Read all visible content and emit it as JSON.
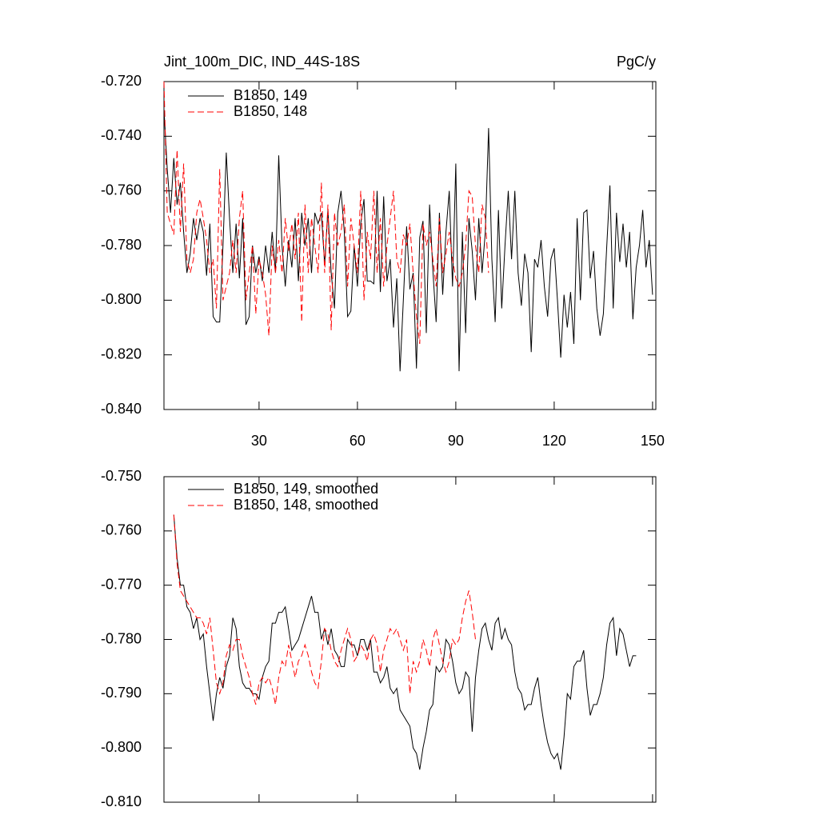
{
  "chart_data": [
    {
      "type": "line",
      "title": "Jint_100m_DIC, IND_44S-18S",
      "units": "PgC/y",
      "x": [
        1,
        2,
        3,
        4,
        5,
        6,
        7,
        8,
        9,
        10,
        11,
        12,
        13,
        14,
        15,
        16,
        17,
        18,
        19,
        20,
        21,
        22,
        23,
        24,
        25,
        26,
        27,
        28,
        29,
        30,
        31,
        32,
        33,
        34,
        35,
        36,
        37,
        38,
        39,
        40,
        41,
        42,
        43,
        44,
        45,
        46,
        47,
        48,
        49,
        50,
        51,
        52,
        53,
        54,
        55,
        56,
        57,
        58,
        59,
        60,
        61,
        62,
        63,
        64,
        65,
        66,
        67,
        68,
        69,
        70,
        71,
        72,
        73,
        74,
        75,
        76,
        77,
        78,
        79,
        80,
        81,
        82,
        83,
        84,
        85,
        86,
        87,
        88,
        89,
        90,
        91,
        92,
        93,
        94,
        95,
        96,
        97,
        98,
        99,
        100,
        101,
        102,
        103,
        104,
        105,
        106,
        107,
        108,
        109,
        110,
        111,
        112,
        113,
        114,
        115,
        116,
        117,
        118,
        119,
        120,
        121,
        122,
        123,
        124,
        125,
        126,
        127,
        128,
        129,
        130,
        131,
        132,
        133,
        134,
        135,
        136,
        137,
        138,
        139,
        140,
        141,
        142,
        143,
        144,
        145,
        146,
        147,
        148,
        149,
        150
      ],
      "series": [
        {
          "name": "B1850, 149",
          "color": "#000000",
          "dash": false,
          "values": [
            -0.73,
            -0.752,
            -0.768,
            -0.748,
            -0.765,
            -0.757,
            -0.775,
            -0.79,
            -0.783,
            -0.77,
            -0.778,
            -0.77,
            -0.775,
            -0.791,
            -0.772,
            -0.806,
            -0.808,
            -0.808,
            -0.78,
            -0.746,
            -0.77,
            -0.79,
            -0.772,
            -0.792,
            -0.77,
            -0.809,
            -0.806,
            -0.78,
            -0.79,
            -0.784,
            -0.793,
            -0.78,
            -0.79,
            -0.775,
            -0.79,
            -0.747,
            -0.78,
            -0.795,
            -0.778,
            -0.788,
            -0.77,
            -0.793,
            -0.768,
            -0.78,
            -0.77,
            -0.79,
            -0.768,
            -0.772,
            -0.768,
            -0.787,
            -0.767,
            -0.79,
            -0.803,
            -0.768,
            -0.76,
            -0.775,
            -0.806,
            -0.804,
            -0.78,
            -0.795,
            -0.772,
            -0.763,
            -0.793,
            -0.793,
            -0.794,
            -0.76,
            -0.797,
            -0.762,
            -0.793,
            -0.785,
            -0.81,
            -0.792,
            -0.826,
            -0.8,
            -0.773,
            -0.796,
            -0.79,
            -0.825,
            -0.777,
            -0.771,
            -0.812,
            -0.765,
            -0.789,
            -0.808,
            -0.768,
            -0.798,
            -0.775,
            -0.76,
            -0.795,
            -0.75,
            -0.826,
            -0.775,
            -0.812,
            -0.77,
            -0.782,
            -0.8,
            -0.77,
            -0.79,
            -0.775,
            -0.737,
            -0.785,
            -0.808,
            -0.767,
            -0.803,
            -0.78,
            -0.76,
            -0.785,
            -0.76,
            -0.79,
            -0.802,
            -0.783,
            -0.79,
            -0.819,
            -0.785,
            -0.788,
            -0.778,
            -0.795,
            -0.806,
            -0.785,
            -0.781,
            -0.8,
            -0.821,
            -0.798,
            -0.81,
            -0.797,
            -0.816,
            -0.77,
            -0.8,
            -0.768,
            -0.767,
            -0.792,
            -0.782,
            -0.803,
            -0.813,
            -0.805,
            -0.781,
            -0.758,
            -0.803,
            -0.768,
            -0.786,
            -0.772,
            -0.788,
            -0.775,
            -0.807,
            -0.788,
            -0.78,
            -0.767,
            -0.788,
            -0.778,
            -0.798
          ]
        },
        {
          "name": "B1850, 148",
          "color": "#ff0000",
          "dash": true,
          "values": [
            -0.72,
            -0.768,
            -0.772,
            -0.776,
            -0.745,
            -0.775,
            -0.75,
            -0.785,
            -0.79,
            -0.785,
            -0.768,
            -0.763,
            -0.77,
            -0.778,
            -0.79,
            -0.785,
            -0.803,
            -0.752,
            -0.8,
            -0.795,
            -0.79,
            -0.778,
            -0.79,
            -0.77,
            -0.76,
            -0.8,
            -0.79,
            -0.78,
            -0.805,
            -0.785,
            -0.79,
            -0.798,
            -0.813,
            -0.78,
            -0.79,
            -0.778,
            -0.79,
            -0.77,
            -0.782,
            -0.772,
            -0.785,
            -0.768,
            -0.808,
            -0.765,
            -0.79,
            -0.77,
            -0.78,
            -0.79,
            -0.757,
            -0.79,
            -0.765,
            -0.811,
            -0.768,
            -0.78,
            -0.775,
            -0.765,
            -0.795,
            -0.77,
            -0.78,
            -0.79,
            -0.76,
            -0.8,
            -0.775,
            -0.785,
            -0.76,
            -0.79,
            -0.77,
            -0.795,
            -0.78,
            -0.77,
            -0.76,
            -0.785,
            -0.79,
            -0.776,
            -0.78,
            -0.772,
            -0.79,
            -0.806,
            -0.816,
            -0.772,
            -0.78,
            -0.775,
            -0.785,
            -0.795,
            -0.77,
            -0.79,
            -0.783,
            -0.775,
            -0.785,
            -0.792,
            -0.795,
            -0.79,
            -0.78,
            -0.76,
            -0.762,
            -0.78,
            -0.79,
            -0.765,
            -0.77,
            -0.79,
            null,
            null,
            null,
            null,
            null,
            null,
            null,
            null,
            null,
            null,
            null,
            null,
            null,
            null,
            null,
            null,
            null,
            null,
            null,
            null,
            null,
            null,
            null,
            null,
            null,
            null,
            null,
            null,
            null,
            null,
            null,
            null,
            null,
            null,
            null,
            null,
            null,
            null,
            null,
            null,
            null,
            null,
            null,
            null,
            null,
            null,
            null,
            null,
            null,
            null
          ]
        }
      ],
      "xlim": [
        1,
        151
      ],
      "xticks": [
        30,
        60,
        90,
        120,
        150
      ],
      "ylim": [
        -0.84,
        -0.72
      ],
      "yticks": [
        {
          "value": -0.84,
          "label": "-0.840"
        },
        {
          "value": -0.82,
          "label": "-0.820"
        },
        {
          "value": -0.8,
          "label": "-0.800"
        },
        {
          "value": -0.78,
          "label": "-0.780"
        },
        {
          "value": -0.76,
          "label": "-0.760"
        },
        {
          "value": -0.74,
          "label": "-0.740"
        },
        {
          "value": -0.72,
          "label": "-0.720"
        }
      ]
    },
    {
      "type": "line",
      "x": [
        1,
        2,
        3,
        4,
        5,
        6,
        7,
        8,
        9,
        10,
        11,
        12,
        13,
        14,
        15,
        16,
        17,
        18,
        19,
        20,
        21,
        22,
        23,
        24,
        25,
        26,
        27,
        28,
        29,
        30,
        31,
        32,
        33,
        34,
        35,
        36,
        37,
        38,
        39,
        40,
        41,
        42,
        43,
        44,
        45,
        46,
        47,
        48,
        49,
        50,
        51,
        52,
        53,
        54,
        55,
        56,
        57,
        58,
        59,
        60,
        61,
        62,
        63,
        64,
        65,
        66,
        67,
        68,
        69,
        70,
        71,
        72,
        73,
        74,
        75,
        76,
        77,
        78,
        79,
        80,
        81,
        82,
        83,
        84,
        85,
        86,
        87,
        88,
        89,
        90,
        91,
        92,
        93,
        94,
        95,
        96,
        97,
        98,
        99,
        100,
        101,
        102,
        103,
        104,
        105,
        106,
        107,
        108,
        109,
        110,
        111,
        112,
        113,
        114,
        115,
        116,
        117,
        118,
        119,
        120,
        121,
        122,
        123,
        124,
        125,
        126,
        127,
        128,
        129,
        130,
        131,
        132,
        133,
        134,
        135,
        136,
        137,
        138,
        139,
        140,
        141,
        142,
        143,
        144,
        145,
        146,
        147,
        148,
        149,
        150
      ],
      "series": [
        {
          "name": "B1850, 149, smoothed",
          "color": "#000000",
          "dash": false,
          "values": [
            null,
            null,
            null,
            -0.757,
            -0.765,
            -0.77,
            -0.77,
            -0.774,
            -0.775,
            -0.778,
            -0.776,
            -0.78,
            -0.779,
            -0.785,
            -0.79,
            -0.795,
            -0.79,
            -0.787,
            -0.789,
            -0.785,
            -0.783,
            -0.776,
            -0.778,
            -0.785,
            -0.788,
            -0.789,
            -0.789,
            -0.79,
            -0.79,
            -0.791,
            -0.787,
            -0.785,
            -0.784,
            -0.777,
            -0.777,
            -0.775,
            -0.775,
            -0.774,
            -0.778,
            -0.782,
            -0.781,
            -0.78,
            -0.778,
            -0.776,
            -0.774,
            -0.772,
            -0.775,
            -0.775,
            -0.78,
            -0.778,
            -0.781,
            -0.778,
            -0.782,
            -0.783,
            -0.785,
            -0.785,
            -0.78,
            -0.781,
            -0.781,
            -0.783,
            -0.78,
            -0.78,
            -0.782,
            -0.78,
            -0.786,
            -0.786,
            -0.788,
            -0.787,
            -0.785,
            -0.789,
            -0.79,
            -0.789,
            -0.793,
            -0.794,
            -0.795,
            -0.796,
            -0.8,
            -0.801,
            -0.804,
            -0.8,
            -0.797,
            -0.793,
            -0.792,
            -0.785,
            -0.786,
            -0.785,
            -0.78,
            -0.781,
            -0.784,
            -0.788,
            -0.79,
            -0.789,
            -0.786,
            -0.787,
            -0.797,
            -0.787,
            -0.782,
            -0.778,
            -0.777,
            -0.78,
            -0.782,
            -0.777,
            -0.776,
            -0.78,
            -0.778,
            -0.78,
            -0.781,
            -0.786,
            -0.789,
            -0.79,
            -0.793,
            -0.792,
            -0.792,
            -0.789,
            -0.787,
            -0.792,
            -0.796,
            -0.799,
            -0.801,
            -0.802,
            -0.801,
            -0.804,
            -0.798,
            -0.79,
            -0.791,
            -0.785,
            -0.784,
            -0.784,
            -0.782,
            -0.789,
            -0.794,
            -0.792,
            -0.792,
            -0.79,
            -0.787,
            -0.781,
            -0.777,
            -0.776,
            -0.783,
            -0.778,
            -0.779,
            -0.782,
            -0.785,
            -0.783,
            -0.783,
            null,
            null,
            null,
            null,
            null
          ]
        },
        {
          "name": "B1850, 148, smoothed",
          "color": "#ff0000",
          "dash": true,
          "values": [
            null,
            null,
            null,
            -0.757,
            -0.766,
            -0.771,
            -0.772,
            -0.773,
            -0.774,
            -0.775,
            -0.776,
            -0.776,
            -0.777,
            -0.779,
            -0.776,
            -0.782,
            -0.788,
            -0.79,
            -0.788,
            -0.783,
            -0.781,
            -0.782,
            -0.78,
            -0.78,
            -0.783,
            -0.785,
            -0.787,
            -0.79,
            -0.792,
            -0.788,
            -0.787,
            -0.788,
            -0.787,
            -0.789,
            -0.792,
            -0.787,
            -0.784,
            -0.785,
            -0.781,
            -0.784,
            -0.787,
            -0.784,
            -0.783,
            -0.781,
            -0.783,
            -0.786,
            -0.788,
            -0.789,
            -0.784,
            -0.778,
            -0.779,
            -0.782,
            -0.784,
            -0.785,
            -0.782,
            -0.78,
            -0.778,
            -0.78,
            -0.784,
            -0.783,
            -0.781,
            -0.782,
            -0.784,
            -0.78,
            -0.779,
            -0.781,
            -0.786,
            -0.782,
            -0.78,
            -0.778,
            -0.779,
            -0.778,
            -0.78,
            -0.782,
            -0.78,
            -0.79,
            -0.784,
            -0.786,
            -0.784,
            -0.78,
            -0.782,
            -0.785,
            -0.78,
            -0.778,
            -0.781,
            -0.784,
            -0.786,
            -0.784,
            -0.78,
            -0.781,
            -0.78,
            -0.776,
            -0.773,
            -0.771,
            -0.775,
            -0.78,
            null,
            null,
            null,
            null,
            null,
            null,
            null,
            null,
            null,
            null,
            null,
            null,
            null,
            null,
            null,
            null,
            null,
            null,
            null,
            null,
            null,
            null,
            null,
            null,
            null,
            null,
            null,
            null,
            null,
            null,
            null,
            null,
            null,
            null,
            null,
            null,
            null,
            null,
            null,
            null,
            null,
            null,
            null,
            null,
            null,
            null,
            null,
            null,
            null,
            null,
            null,
            null,
            null,
            null
          ]
        }
      ],
      "xlim": [
        1,
        151
      ],
      "xticks": [
        30,
        60,
        90,
        120,
        150
      ],
      "ylim": [
        -0.81,
        -0.75
      ],
      "yticks": [
        {
          "value": -0.81,
          "label": "-0.810"
        },
        {
          "value": -0.8,
          "label": "-0.800"
        },
        {
          "value": -0.79,
          "label": "-0.790"
        },
        {
          "value": -0.78,
          "label": "-0.780"
        },
        {
          "value": -0.77,
          "label": "-0.770"
        },
        {
          "value": -0.76,
          "label": "-0.760"
        },
        {
          "value": -0.75,
          "label": "-0.750"
        }
      ]
    }
  ]
}
